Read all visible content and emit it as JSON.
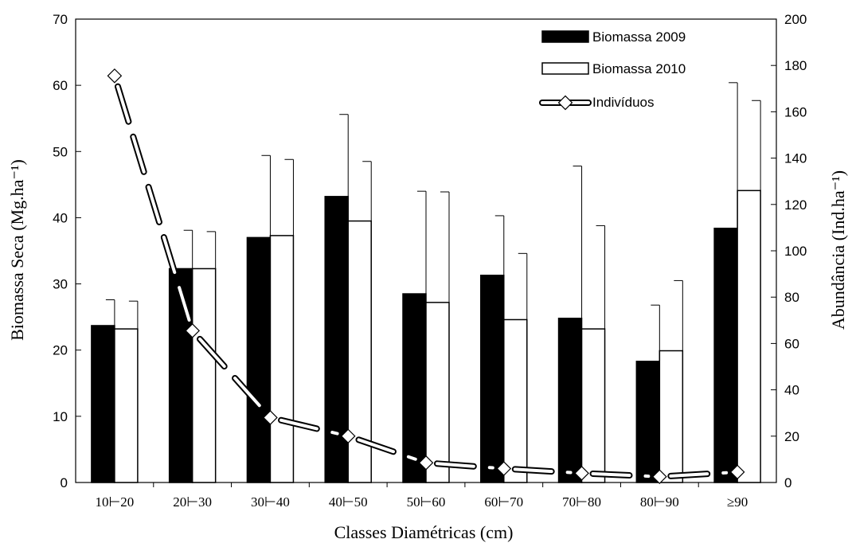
{
  "chart_data": {
    "type": "bar",
    "categories": [
      "10⊢20",
      "20⊢30",
      "30⊢40",
      "40⊢50",
      "50⊢60",
      "60⊢70",
      "70⊢80",
      "80⊢90",
      "≥90"
    ],
    "xlabel": "Classes Diamétricas (cm)",
    "ylabel": "Biomassa Seca (Mg.ha⁻¹)",
    "y2label": "Abundância (Ind.ha⁻¹)",
    "ylim": [
      0,
      70
    ],
    "y2lim": [
      0,
      200
    ],
    "yticks": [
      0,
      10,
      20,
      30,
      40,
      50,
      60,
      70
    ],
    "y2ticks": [
      0,
      20,
      40,
      60,
      80,
      100,
      120,
      140,
      160,
      180,
      200
    ],
    "legend_position": "top-right",
    "grid": false,
    "series": [
      {
        "name": "Biomassa 2009",
        "type": "bar",
        "axis": "left",
        "color": "#000000",
        "values": [
          23.7,
          32.3,
          37.0,
          43.2,
          28.5,
          31.3,
          24.8,
          18.3,
          38.4
        ],
        "error": [
          3.9,
          5.8,
          12.4,
          12.4,
          15.5,
          9.0,
          23.0,
          8.5,
          22.0
        ]
      },
      {
        "name": "Biomassa 2010",
        "type": "bar",
        "axis": "left",
        "color": "#ffffff",
        "values": [
          23.2,
          32.3,
          37.3,
          39.5,
          27.2,
          24.6,
          23.2,
          19.9,
          44.1
        ],
        "error": [
          4.2,
          5.6,
          11.5,
          9.0,
          16.7,
          10.0,
          15.6,
          10.6,
          13.6
        ]
      },
      {
        "name": "Indivíduos",
        "type": "line",
        "axis": "right",
        "color": "#ffffff",
        "values": [
          175.5,
          65.5,
          28,
          20,
          8.5,
          6,
          4,
          2.5,
          4.5
        ]
      }
    ]
  }
}
